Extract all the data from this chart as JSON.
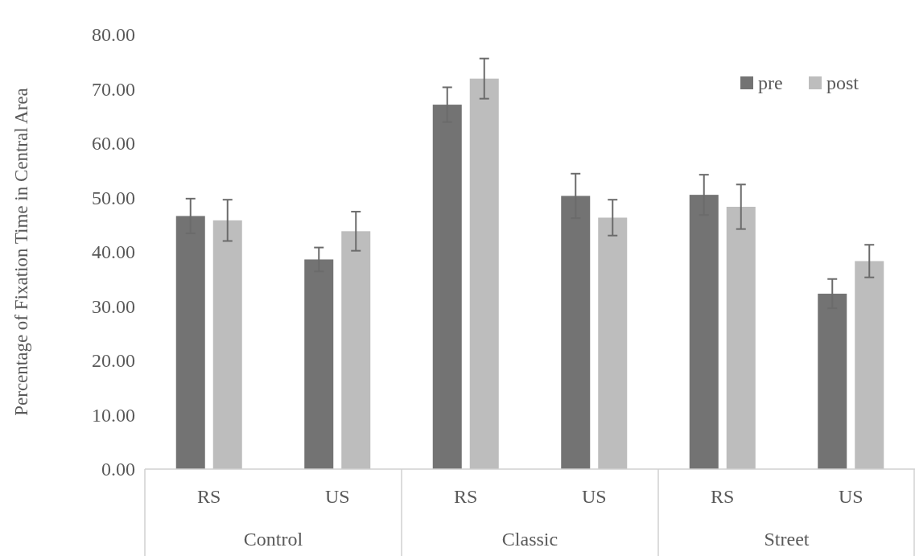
{
  "chart_data": {
    "type": "bar",
    "ylabel": "Percentage of Fixation Time in Central Area",
    "categories": [
      "RS",
      "US",
      "RS",
      "US",
      "RS",
      "US"
    ],
    "annotations": [
      "Control",
      "Classic",
      "Street"
    ],
    "series": [
      {
        "name": "pre",
        "color": "#737373",
        "values": [
          46.6,
          38.6,
          67.1,
          50.3,
          50.5,
          32.3
        ],
        "errors": [
          3.2,
          2.2,
          3.2,
          4.1,
          3.7,
          2.7
        ]
      },
      {
        "name": "post",
        "color": "#bdbdbd",
        "values": [
          45.8,
          43.8,
          71.9,
          46.3,
          48.3,
          38.3
        ],
        "errors": [
          3.8,
          3.6,
          3.7,
          3.3,
          4.1,
          3.0
        ]
      }
    ],
    "ylim": [
      0,
      80
    ],
    "yticks": [
      {
        "value": 0,
        "label": "0.00"
      },
      {
        "value": 10,
        "label": "10.00"
      },
      {
        "value": 20,
        "label": "20.00"
      },
      {
        "value": 30,
        "label": "30.00"
      },
      {
        "value": 40,
        "label": "40.00"
      },
      {
        "value": 50,
        "label": "50.00"
      },
      {
        "value": 60,
        "label": "60.00"
      },
      {
        "value": 70,
        "label": "70.00"
      },
      {
        "value": 80,
        "label": "80.00"
      }
    ],
    "legend": "top right"
  }
}
